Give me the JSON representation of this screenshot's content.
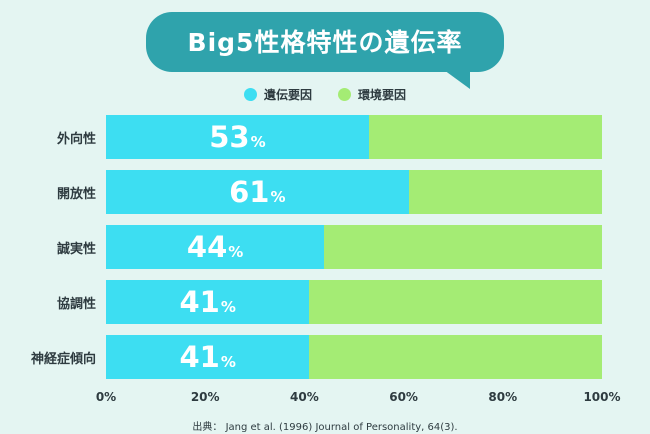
{
  "title": "Big5性格特性の遺伝率",
  "legend": {
    "genetic_label": "遺伝要因",
    "environment_label": "環境要因",
    "genetic_color": "#3ddef2",
    "environment_color": "#a4ec74"
  },
  "chart_data": {
    "type": "bar",
    "orientation": "horizontal",
    "stacked": true,
    "title": "Big5性格特性の遺伝率",
    "categories": [
      "外向性",
      "開放性",
      "誠実性",
      "協調性",
      "神経症傾向"
    ],
    "series": [
      {
        "name": "遺伝要因",
        "color": "#3ddef2",
        "values": [
          53,
          61,
          44,
          41,
          41
        ]
      },
      {
        "name": "環境要因",
        "color": "#a4ec74",
        "values": [
          47,
          39,
          56,
          59,
          59
        ]
      }
    ],
    "value_suffix": "%",
    "x_ticks": [
      "0%",
      "20%",
      "40%",
      "60%",
      "80%",
      "100%"
    ],
    "xlim": [
      0,
      100
    ],
    "legend_position": "top"
  },
  "source": "出典： Jang et al. (1996) Journal of Personality, 64(3)."
}
